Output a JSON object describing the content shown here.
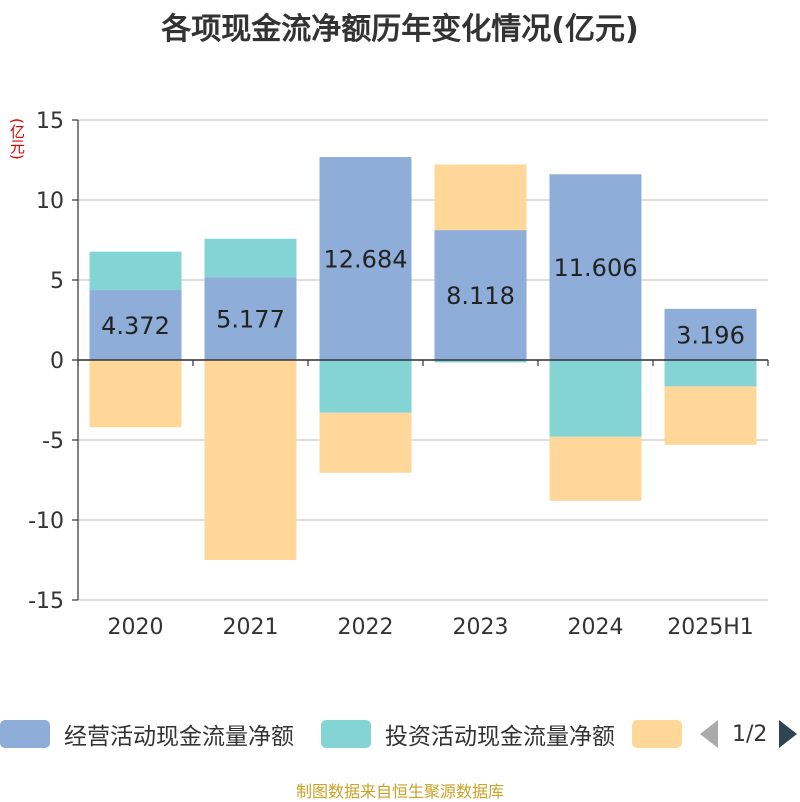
{
  "title": "各项现金流净额历年变化情况(亿元)",
  "unit_label": "(亿元)",
  "source": "制图数据来自恒生聚源数据库",
  "legend": {
    "page_label": "1/2"
  },
  "colors": {
    "operating": "#8eadd9",
    "investing": "#84d4d6",
    "financing": "#ffd899",
    "axis": "#333333",
    "grid": "#cccccc"
  },
  "chart_data": {
    "type": "bar",
    "stacked": true,
    "categories": [
      "2020",
      "2021",
      "2022",
      "2023",
      "2024",
      "2025H1"
    ],
    "ylim": [
      -15,
      15
    ],
    "yticks": [
      15,
      10,
      5,
      0,
      -5,
      -10,
      -15
    ],
    "ytick_labels": [
      "15",
      "10",
      "5",
      "0",
      "-5",
      "-10",
      "-15"
    ],
    "grid": true,
    "legend_position": "bottom",
    "series": [
      {
        "name": "经营活动现金流量净额",
        "color_key": "operating",
        "values": [
          4.372,
          5.177,
          12.684,
          8.118,
          11.606,
          3.196
        ],
        "labels": [
          "4.372",
          "5.177",
          "12.684",
          "8.118",
          "11.606",
          "3.196"
        ]
      },
      {
        "name": "投资活动现金流量净额",
        "color_key": "investing",
        "values": [
          2.4,
          2.4,
          -3.3,
          -0.15,
          -4.8,
          -1.65
        ]
      },
      {
        "color_key": "financing",
        "values": [
          -4.2,
          -12.5,
          -3.75,
          4.1,
          -4.0,
          -3.65
        ]
      }
    ]
  }
}
